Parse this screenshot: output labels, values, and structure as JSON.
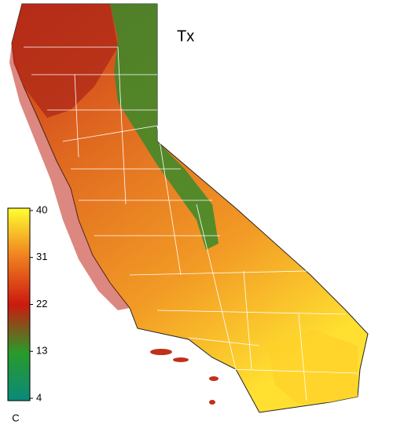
{
  "title": "Tx",
  "colorbar": {
    "min": 4,
    "max": 40,
    "ticks": [
      4,
      13,
      22,
      31,
      40
    ],
    "unit": "C",
    "colors": [
      "#0a8a7a",
      "#2a9a2a",
      "#cc1a10",
      "#f08020",
      "#ffff30"
    ]
  }
}
